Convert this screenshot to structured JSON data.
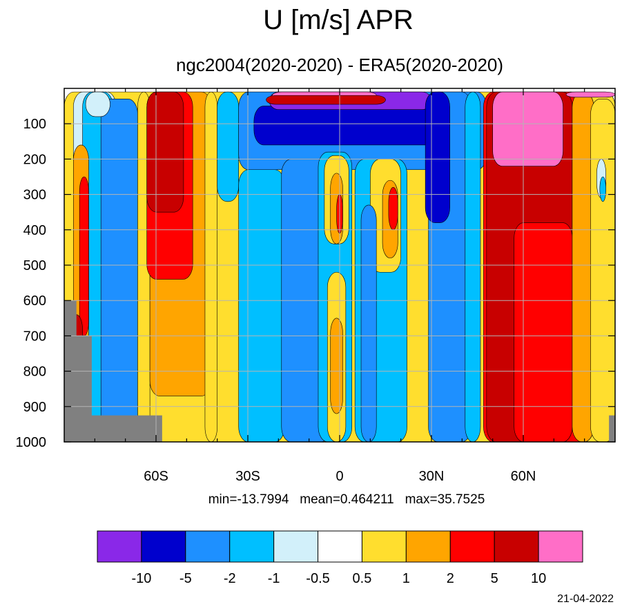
{
  "chart_data": {
    "type": "heatmap",
    "title": "U [m/s] APR",
    "subtitle": "ngc2004(2020-2020) - ERA5(2020-2020)",
    "xlabel": "",
    "ylabel": "",
    "x_range": [
      -90,
      90
    ],
    "x_ticks": [
      {
        "value": -60,
        "label": "60S"
      },
      {
        "value": -30,
        "label": "30S"
      },
      {
        "value": 0,
        "label": "0"
      },
      {
        "value": 30,
        "label": "30N"
      },
      {
        "value": 60,
        "label": "60N"
      }
    ],
    "y_range": [
      0,
      1000
    ],
    "y_inverted": true,
    "y_ticks": [
      100,
      200,
      300,
      400,
      500,
      600,
      700,
      800,
      900,
      1000
    ],
    "grid": true,
    "stats": {
      "min": "-13.7994",
      "mean": "0.464211",
      "max": "35.7525"
    },
    "stats_text": "min=-13.7994   mean=0.464211   max=35.7525",
    "levels": [
      -10,
      -5,
      -2,
      -1,
      -0.5,
      0.5,
      1,
      2,
      5,
      10
    ],
    "level_labels": [
      "-10",
      "-5",
      "-2",
      "-1",
      "-0.5",
      "0.5",
      "1",
      "2",
      "5",
      "10"
    ],
    "colors": [
      "#8a28e8",
      "#0000cd",
      "#1e90ff",
      "#00bfff",
      "#d2f0fa",
      "#ffffff",
      "#ffde2e",
      "#ffa500",
      "#ff0000",
      "#c80000",
      "#ff6ec7"
    ],
    "missing_color": "#808080",
    "missing_regions": [
      {
        "lat": [
          -90,
          -86
        ],
        "p": [
          600,
          1000
        ]
      },
      {
        "lat": [
          -90,
          -81
        ],
        "p": [
          700,
          1000
        ]
      },
      {
        "lat": [
          -88,
          -58
        ],
        "p": [
          925,
          1000
        ]
      },
      {
        "lat": [
          88,
          90
        ],
        "p": [
          925,
          1000
        ]
      }
    ],
    "regions": [
      {
        "level": 0.5,
        "lat": [
          -90,
          90
        ],
        "p": [
          10,
          1000
        ]
      },
      {
        "level": -0.5,
        "lat": [
          -87,
          -73
        ],
        "p": [
          10,
          1000
        ]
      },
      {
        "level": -1,
        "lat": [
          -84,
          -74
        ],
        "p": [
          10,
          950
        ]
      },
      {
        "level": -2,
        "lat": [
          -78,
          -66
        ],
        "p": [
          30,
          1000
        ]
      },
      {
        "level": -0.5,
        "lat": [
          -83,
          -75
        ],
        "p": [
          10,
          80
        ]
      },
      {
        "level": 1,
        "lat": [
          -87,
          -82
        ],
        "p": [
          160,
          900
        ]
      },
      {
        "level": 2,
        "lat": [
          -85,
          -82
        ],
        "p": [
          250,
          700
        ]
      },
      {
        "level": 5,
        "lat": [
          -88,
          -84
        ],
        "p": [
          640,
          900
        ]
      },
      {
        "level": 0.5,
        "lat": [
          -66,
          -62
        ],
        "p": [
          10,
          1000
        ]
      },
      {
        "level": 1,
        "lat": [
          -62,
          -42
        ],
        "p": [
          10,
          870
        ]
      },
      {
        "level": 2,
        "lat": [
          -63,
          -48
        ],
        "p": [
          10,
          540
        ]
      },
      {
        "level": 5,
        "lat": [
          -63,
          -51
        ],
        "p": [
          10,
          350
        ]
      },
      {
        "level": 0.5,
        "lat": [
          -44,
          -40
        ],
        "p": [
          10,
          1000
        ]
      },
      {
        "level": -1,
        "lat": [
          -40,
          -33
        ],
        "p": [
          10,
          320
        ]
      },
      {
        "level": -2,
        "lat": [
          -33,
          48
        ],
        "p": [
          10,
          230
        ]
      },
      {
        "level": -5,
        "lat": [
          -28,
          35
        ],
        "p": [
          50,
          160
        ]
      },
      {
        "level": -10,
        "lat": [
          -23,
          30
        ],
        "p": [
          10,
          60
        ]
      },
      {
        "level": 10,
        "lat": [
          -22,
          12
        ],
        "p": [
          10,
          30
        ]
      },
      {
        "level": 5,
        "lat": [
          -24,
          15
        ],
        "p": [
          20,
          45
        ]
      },
      {
        "level": -1,
        "lat": [
          -33,
          -18
        ],
        "p": [
          230,
          1000
        ]
      },
      {
        "level": -2,
        "lat": [
          -19,
          -3
        ],
        "p": [
          200,
          1000
        ]
      },
      {
        "level": -1,
        "lat": [
          -7,
          4
        ],
        "p": [
          180,
          1000
        ]
      },
      {
        "level": 0.5,
        "lat": [
          -5,
          3
        ],
        "p": [
          190,
          440
        ]
      },
      {
        "level": 1,
        "lat": [
          -3,
          1
        ],
        "p": [
          240,
          440
        ]
      },
      {
        "level": 2,
        "lat": [
          -1,
          1
        ],
        "p": [
          300,
          410
        ]
      },
      {
        "level": -1,
        "lat": [
          5,
          22
        ],
        "p": [
          200,
          1000
        ]
      },
      {
        "level": 0.5,
        "lat": [
          10,
          20
        ],
        "p": [
          200,
          520
        ]
      },
      {
        "level": 1,
        "lat": [
          14,
          19
        ],
        "p": [
          260,
          480
        ]
      },
      {
        "level": 2,
        "lat": [
          16,
          19
        ],
        "p": [
          280,
          400
        ]
      },
      {
        "level": -2,
        "lat": [
          7,
          12
        ],
        "p": [
          330,
          1000
        ]
      },
      {
        "level": 0.5,
        "lat": [
          -4,
          2
        ],
        "p": [
          520,
          1000
        ]
      },
      {
        "level": 1,
        "lat": [
          -3,
          1
        ],
        "p": [
          650,
          920
        ]
      },
      {
        "level": -2,
        "lat": [
          29,
          43
        ],
        "p": [
          10,
          1000
        ]
      },
      {
        "level": -5,
        "lat": [
          28,
          36
        ],
        "p": [
          10,
          380
        ]
      },
      {
        "level": -1,
        "lat": [
          41,
          46
        ],
        "p": [
          10,
          1000
        ]
      },
      {
        "level": 2,
        "lat": [
          47,
          83
        ],
        "p": [
          10,
          1000
        ]
      },
      {
        "level": 5,
        "lat": [
          48,
          76
        ],
        "p": [
          10,
          1000
        ]
      },
      {
        "level": 2,
        "lat": [
          57,
          76
        ],
        "p": [
          380,
          1000
        ]
      },
      {
        "level": 1,
        "lat": [
          76,
          83
        ],
        "p": [
          10,
          1000
        ]
      },
      {
        "level": 10,
        "lat": [
          50,
          73
        ],
        "p": [
          10,
          220
        ]
      },
      {
        "level": 10,
        "lat": [
          74,
          90
        ],
        "p": [
          10,
          25
        ]
      },
      {
        "level": 0.5,
        "lat": [
          82,
          90
        ],
        "p": [
          30,
          1000
        ]
      },
      {
        "level": -0.5,
        "lat": [
          84,
          87
        ],
        "p": [
          200,
          310
        ]
      },
      {
        "level": -1,
        "lat": [
          85,
          87
        ],
        "p": [
          250,
          320
        ]
      }
    ]
  },
  "footer": {
    "date": "21-04-2022"
  }
}
